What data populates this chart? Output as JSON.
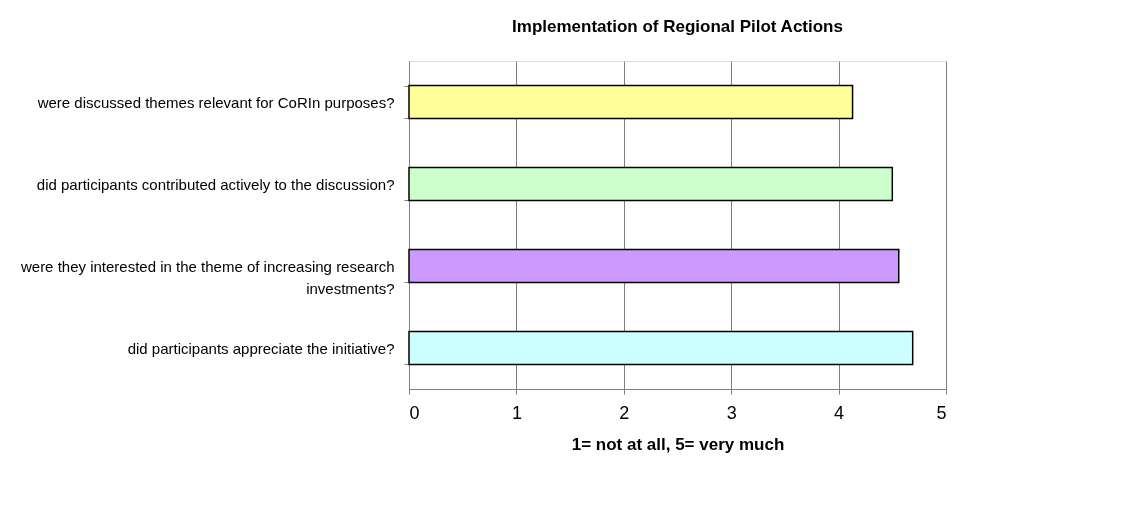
{
  "chart_data": {
    "type": "bar",
    "orientation": "horizontal",
    "title": "Implementation of Regional Pilot Actions",
    "xlabel": "1= not at all, 5= very much",
    "categories": [
      "were discussed themes relevant for CoRIn purposes?",
      "did participants contributed actively to the discussion?",
      "were they interested in the theme of increasing research investments?",
      "did participants appreciate the initiative?"
    ],
    "values": [
      4.13,
      4.5,
      4.56,
      4.69
    ],
    "colors": [
      "#ffff99",
      "#ccffcc",
      "#cc99ff",
      "#ccffff"
    ],
    "xlim": [
      0,
      5
    ],
    "xticks": [
      0,
      1,
      2,
      3,
      4,
      5
    ],
    "grid": "x",
    "legend": false
  }
}
